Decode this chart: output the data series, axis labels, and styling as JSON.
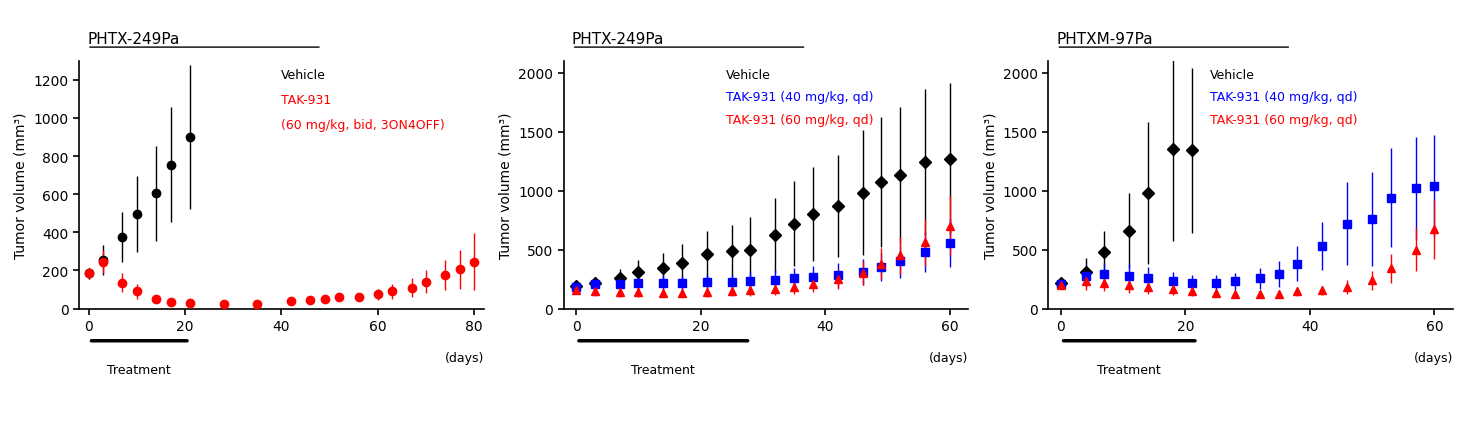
{
  "panel1": {
    "title": "PHTX-249Pa",
    "ylabel": "Tumor volume (mm³)",
    "xlabel": "(days)",
    "xlim": [
      -2,
      82
    ],
    "ylim": [
      0,
      1300
    ],
    "yticks": [
      0,
      200,
      400,
      600,
      800,
      1000,
      1200
    ],
    "xticks": [
      0,
      20,
      40,
      60,
      80
    ],
    "treatment_bar": [
      0,
      21
    ],
    "legend_texts": [
      "Vehicle",
      "TAK-931",
      "(60 mg/kg, bid, 3ON4OFF)"
    ],
    "legend_colors": [
      "black",
      "red",
      "red"
    ],
    "series": [
      {
        "name": "Vehicle",
        "color": "black",
        "marker": "o",
        "markersize": 6,
        "x": [
          0,
          3,
          7,
          10,
          14,
          17,
          21
        ],
        "y": [
          185,
          255,
          375,
          495,
          605,
          755,
          900
        ],
        "yerr": [
          30,
          80,
          130,
          200,
          250,
          300,
          380
        ]
      },
      {
        "name": "TAK-931 (60 mg/kg, bid, 3ON4OFF)",
        "color": "red",
        "marker": "o",
        "markersize": 6,
        "x": [
          0,
          3,
          7,
          10,
          14,
          17,
          21,
          28,
          35,
          42,
          46,
          49,
          52,
          56,
          60,
          63,
          67,
          70,
          74,
          77,
          80
        ],
        "y": [
          185,
          245,
          135,
          90,
          50,
          35,
          30,
          25,
          25,
          40,
          45,
          50,
          60,
          60,
          75,
          90,
          110,
          140,
          175,
          205,
          245
        ],
        "yerr": [
          30,
          60,
          50,
          40,
          20,
          15,
          10,
          10,
          10,
          15,
          15,
          20,
          20,
          20,
          30,
          40,
          50,
          60,
          80,
          100,
          150
        ]
      }
    ]
  },
  "panel2": {
    "title": "PHTX-249Pa",
    "ylabel": "Tumor volume (mm³)",
    "xlabel": "(days)",
    "xlim": [
      -2,
      63
    ],
    "ylim": [
      0,
      2100
    ],
    "yticks": [
      0,
      500,
      1000,
      1500,
      2000
    ],
    "xticks": [
      0,
      20,
      40,
      60
    ],
    "treatment_bar": [
      0,
      28
    ],
    "legend_texts": [
      "Vehicle",
      "TAK-931 (40 mg/kg, qd)",
      "TAK-931 (60 mg/kg, qd)"
    ],
    "legend_colors": [
      "black",
      "blue",
      "red"
    ],
    "series": [
      {
        "name": "Vehicle",
        "color": "black",
        "marker": "D",
        "markersize": 6,
        "x": [
          0,
          3,
          7,
          10,
          14,
          17,
          21,
          25,
          28,
          32,
          35,
          38,
          42,
          46,
          49,
          52,
          56,
          60
        ],
        "y": [
          190,
          220,
          255,
          310,
          340,
          385,
          460,
          490,
          500,
          620,
          720,
          800,
          870,
          980,
          1070,
          1130,
          1240,
          1270
        ],
        "yerr": [
          40,
          50,
          80,
          100,
          130,
          160,
          200,
          220,
          280,
          320,
          360,
          400,
          430,
          530,
          550,
          580,
          620,
          640
        ]
      },
      {
        "name": "TAK-931 (40 mg/kg, qd)",
        "color": "blue",
        "marker": "s",
        "markersize": 6,
        "x": [
          0,
          3,
          7,
          10,
          14,
          17,
          21,
          25,
          28,
          32,
          35,
          38,
          42,
          46,
          49,
          52,
          56,
          60
        ],
        "y": [
          185,
          205,
          205,
          215,
          215,
          215,
          225,
          225,
          235,
          240,
          255,
          265,
          285,
          310,
          350,
          400,
          480,
          555
        ],
        "yerr": [
          40,
          50,
          60,
          70,
          70,
          65,
          70,
          70,
          80,
          85,
          90,
          95,
          100,
          110,
          120,
          140,
          170,
          200
        ]
      },
      {
        "name": "TAK-931 (60 mg/kg, qd)",
        "color": "red",
        "marker": "^",
        "markersize": 6,
        "x": [
          0,
          3,
          7,
          10,
          14,
          17,
          21,
          25,
          28,
          32,
          35,
          38,
          42,
          46,
          49,
          52,
          56,
          60
        ],
        "y": [
          160,
          150,
          140,
          140,
          135,
          135,
          140,
          145,
          155,
          165,
          185,
          210,
          250,
          300,
          380,
          450,
          560,
          700
        ],
        "yerr": [
          35,
          40,
          40,
          40,
          40,
          38,
          40,
          42,
          45,
          50,
          60,
          70,
          85,
          100,
          130,
          160,
          200,
          250
        ]
      }
    ]
  },
  "panel3": {
    "title": "PHTXM-97Pa",
    "ylabel": "Tumor volume (mm³)",
    "xlabel": "(days)",
    "xlim": [
      -2,
      63
    ],
    "ylim": [
      0,
      2100
    ],
    "yticks": [
      0,
      500,
      1000,
      1500,
      2000
    ],
    "xticks": [
      0,
      20,
      40,
      60
    ],
    "treatment_bar": [
      0,
      22
    ],
    "legend_texts": [
      "Vehicle",
      "TAK-931 (40 mg/kg, qd)",
      "TAK-931 (60 mg/kg, qd)"
    ],
    "legend_colors": [
      "black",
      "blue",
      "red"
    ],
    "series": [
      {
        "name": "Vehicle",
        "color": "black",
        "marker": "D",
        "markersize": 6,
        "x": [
          0,
          4,
          7,
          11,
          14,
          18,
          21
        ],
        "y": [
          220,
          310,
          480,
          660,
          980,
          1350,
          1340
        ],
        "yerr": [
          40,
          120,
          180,
          320,
          600,
          780,
          700
        ]
      },
      {
        "name": "TAK-931 (40 mg/kg, qd)",
        "color": "blue",
        "marker": "s",
        "markersize": 6,
        "x": [
          0,
          4,
          7,
          11,
          14,
          18,
          21,
          25,
          28,
          32,
          35,
          38,
          42,
          46,
          50,
          53,
          57,
          60
        ],
        "y": [
          210,
          280,
          290,
          280,
          260,
          230,
          215,
          215,
          230,
          255,
          295,
          380,
          530,
          720,
          760,
          940,
          1020,
          1040
        ],
        "yerr": [
          40,
          90,
          100,
          100,
          90,
          80,
          70,
          70,
          75,
          90,
          110,
          150,
          200,
          350,
          400,
          420,
          430,
          430
        ]
      },
      {
        "name": "TAK-931 (60 mg/kg, qd)",
        "color": "red",
        "marker": "^",
        "markersize": 6,
        "x": [
          0,
          4,
          7,
          11,
          14,
          18,
          21,
          25,
          28,
          32,
          35,
          38,
          42,
          46,
          50,
          53,
          57,
          60
        ],
        "y": [
          200,
          230,
          220,
          200,
          180,
          165,
          145,
          130,
          120,
          120,
          125,
          145,
          155,
          185,
          240,
          340,
          500,
          670
        ],
        "yerr": [
          35,
          70,
          70,
          65,
          55,
          50,
          40,
          35,
          30,
          30,
          30,
          35,
          40,
          60,
          80,
          120,
          180,
          250
        ]
      }
    ]
  }
}
